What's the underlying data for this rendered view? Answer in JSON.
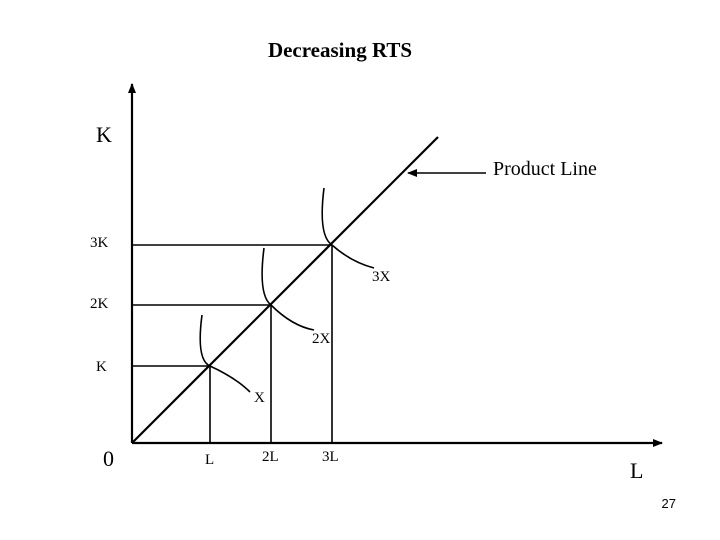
{
  "title": "Decreasing RTS",
  "axes": {
    "y_label": "K",
    "x_label": "L",
    "origin": "0"
  },
  "y_ticks": [
    "3K",
    "2K",
    "K"
  ],
  "x_ticks": [
    "L",
    "2L",
    "3L"
  ],
  "isoquants": [
    "X",
    "2X",
    "3X"
  ],
  "product_line_label": "Product Line",
  "page_number": "27"
}
